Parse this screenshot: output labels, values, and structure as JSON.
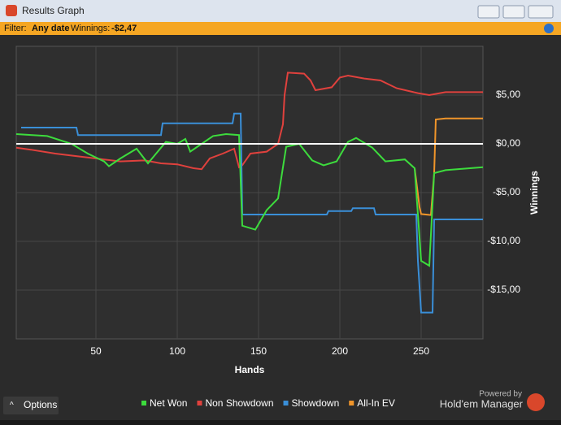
{
  "window": {
    "title": "Results Graph",
    "filter_label": "Filter:",
    "filter_value": "Any date",
    "winnings_label": "Winnings:",
    "winnings_value": "-$2,47",
    "options": "Options",
    "powered_by": "Powered by",
    "brand": "Hold'em Manager"
  },
  "chart_data": {
    "type": "line",
    "xlabel": "Hands",
    "ylabel": "Winnings",
    "xlim": [
      1,
      288
    ],
    "ylim": [
      -20,
      10
    ],
    "xticks": [
      50,
      100,
      150,
      200,
      250
    ],
    "yticks": [
      {
        "value": -15,
        "label": "-$15,00"
      },
      {
        "value": -10,
        "label": "-$10,00"
      },
      {
        "value": -5,
        "label": "-$5,00"
      },
      {
        "value": 0,
        "label": "$0,00"
      },
      {
        "value": 5,
        "label": "$5,00"
      }
    ],
    "grid": true,
    "zero_line": true,
    "legend": "bottom",
    "series": [
      {
        "name": "All-In EV",
        "color": "#f0952a",
        "x": [
          246,
          249,
          250,
          256,
          258,
          259,
          265,
          288
        ],
        "values": [
          -2.5,
          -6.5,
          -7.2,
          -7.3,
          -3,
          2.5,
          2.6,
          2.6
        ]
      },
      {
        "name": "Non Showdown",
        "color": "#e0413d",
        "x": [
          1,
          10,
          25,
          40,
          50,
          65,
          80,
          90,
          100,
          110,
          115,
          120,
          128,
          135,
          138,
          140,
          145,
          155,
          162,
          165,
          166,
          168,
          178,
          182,
          185,
          195,
          200,
          205,
          215,
          225,
          235,
          248,
          255,
          265,
          288
        ],
        "values": [
          -0.4,
          -0.6,
          -1,
          -1.3,
          -1.5,
          -1.8,
          -1.7,
          -2,
          -2.1,
          -2.5,
          -2.6,
          -1.5,
          -1,
          -0.5,
          -2.4,
          -2.2,
          -1,
          -0.8,
          0,
          2,
          5,
          7.3,
          7.2,
          6.5,
          5.5,
          5.8,
          6.8,
          7,
          6.7,
          6.5,
          5.7,
          5.2,
          5,
          5.3,
          5.3
        ]
      },
      {
        "name": "Showdown",
        "color": "#3a8fd8",
        "x": [
          4,
          38,
          39,
          90,
          91,
          134,
          135,
          139,
          140,
          192,
          193,
          207,
          208,
          221,
          222,
          247,
          248,
          250,
          257,
          258,
          288
        ],
        "values": [
          1.67,
          1.67,
          0.9,
          0.9,
          2.1,
          2.1,
          3.1,
          3.1,
          -7.25,
          -7.25,
          -6.9,
          -6.9,
          -6.6,
          -6.6,
          -7.25,
          -7.25,
          -12,
          -17.3,
          -17.3,
          -7.75,
          -7.75
        ]
      },
      {
        "name": "Net Won",
        "color": "#3ddc3d",
        "x": [
          1,
          20,
          35,
          45,
          55,
          58,
          65,
          75,
          82,
          93,
          100,
          105,
          108,
          115,
          122,
          130,
          138,
          140,
          148,
          155,
          162,
          167,
          175,
          183,
          190,
          198,
          205,
          210,
          220,
          228,
          240,
          246,
          250,
          255,
          258,
          265,
          288
        ],
        "values": [
          1,
          0.8,
          0,
          -1,
          -1.8,
          -2.3,
          -1.5,
          -0.5,
          -2,
          0.2,
          0,
          0.5,
          -0.8,
          0,
          0.8,
          1,
          0.9,
          -8.4,
          -8.8,
          -6.8,
          -5.6,
          -0.3,
          0,
          -1.7,
          -2.2,
          -1.8,
          0.2,
          0.6,
          -0.4,
          -1.8,
          -1.6,
          -2.5,
          -12,
          -12.5,
          -3,
          -2.7,
          -2.4
        ]
      }
    ]
  }
}
